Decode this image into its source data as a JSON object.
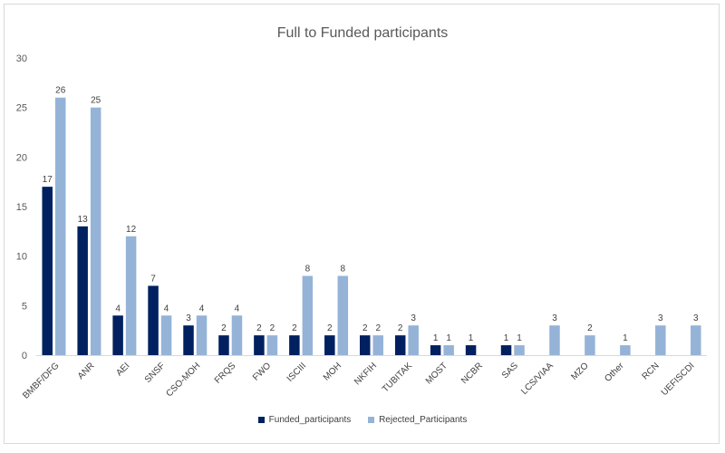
{
  "chart_data": {
    "type": "bar",
    "title": "Full to Funded participants",
    "xlabel": "",
    "ylabel": "",
    "ylim": [
      0,
      30
    ],
    "yticks": [
      0,
      5,
      10,
      15,
      20,
      25,
      30
    ],
    "grid": false,
    "legend_position": "bottom",
    "categories": [
      "BMBF/DFG",
      "ANR",
      "AEI",
      "SNSF",
      "CSO-MOH",
      "FRQS",
      "FWO",
      "ISCIII",
      "MOH",
      "NKFIH",
      "TUBITAK",
      "MOST",
      "NCBR",
      "SAS",
      "LCS/VIAA",
      "MZO",
      "Other",
      "RCN",
      "UEFISCDI"
    ],
    "series": [
      {
        "name": "Funded_participants",
        "color": "#002060",
        "values": [
          17,
          13,
          4,
          7,
          3,
          2,
          2,
          2,
          2,
          2,
          2,
          1,
          1,
          1,
          null,
          null,
          null,
          null,
          null
        ]
      },
      {
        "name": "Rejected_Participants",
        "color": "#95b3d7",
        "values": [
          26,
          25,
          12,
          4,
          4,
          4,
          2,
          8,
          8,
          2,
          3,
          1,
          null,
          1,
          3,
          2,
          1,
          3,
          3
        ]
      }
    ]
  }
}
